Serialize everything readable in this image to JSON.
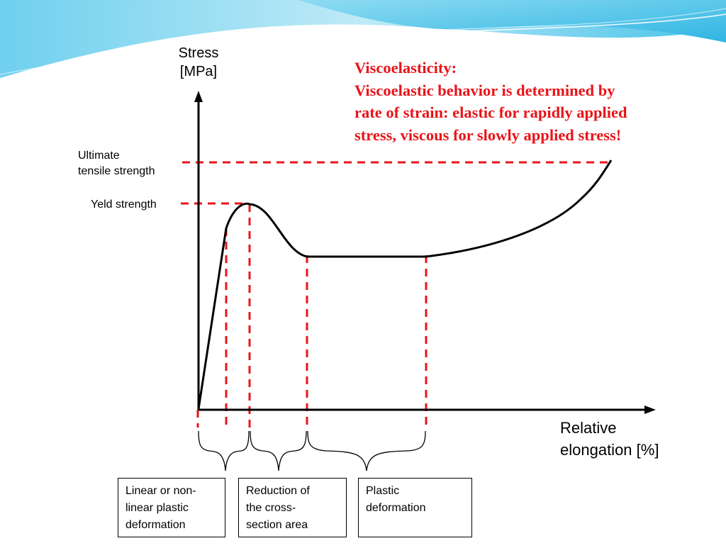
{
  "axes": {
    "y_label": [
      "Stress",
      "[MPa]"
    ],
    "x_label": [
      "Relative",
      "elongation [%]"
    ]
  },
  "markers": {
    "ultimate": [
      "Ultimate",
      "tensile strength"
    ],
    "yield": "Yeld strength"
  },
  "note": {
    "title": "Viscoelasticity:",
    "lines": [
      "Viscoelastic behavior is determined by",
      "rate of strain: elastic for rapidly applied",
      "stress, viscous for slowly applied stress!"
    ]
  },
  "regions": [
    "Linear or non-linear plastic deformation",
    "Reduction of the cross-section area",
    "Plastic deformation"
  ],
  "region_lines": [
    [
      "Linear or non-",
      "linear plastic",
      "deformation"
    ],
    [
      "Reduction of",
      "the cross-",
      "section area"
    ],
    [
      "Plastic",
      "deformation"
    ]
  ],
  "colors": {
    "accent": "#e8141a",
    "curve": "#000000",
    "header_wave": "#3fc1e8"
  }
}
